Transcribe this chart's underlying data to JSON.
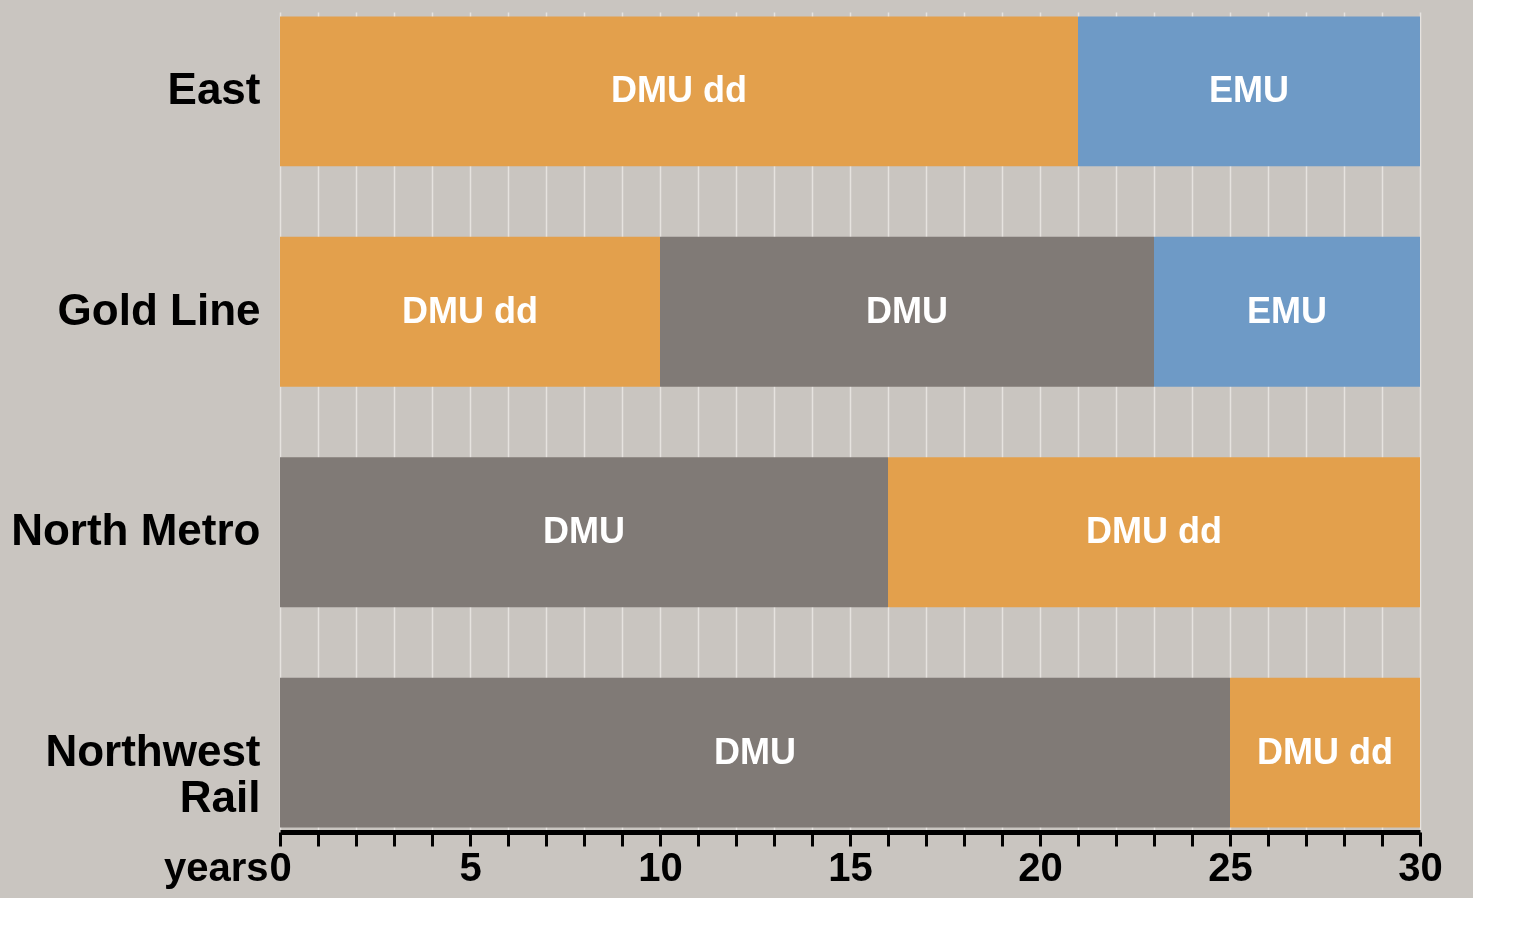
{
  "chart_data": {
    "type": "bar",
    "orientation": "horizontal",
    "xlabel": "years",
    "categories": [
      "East",
      "Gold Line",
      "North Metro",
      "Northwest Rail"
    ],
    "series": [
      {
        "name": "DMU dd",
        "color": "#e3a04c",
        "values": [
          21,
          10,
          14,
          5
        ],
        "base": [
          0,
          0,
          16,
          25
        ]
      },
      {
        "name": "DMU",
        "color": "#807a76",
        "values": [
          null,
          13,
          16,
          25
        ],
        "base": [
          null,
          10,
          0,
          0
        ]
      },
      {
        "name": "EMU",
        "color": "#6e9ac6",
        "values": [
          9,
          7,
          null,
          null
        ],
        "base": [
          21,
          23,
          null,
          null
        ]
      }
    ],
    "xlim": [
      0,
      30
    ],
    "xticks": [
      0,
      {
        "value": 1,
        "label": null
      },
      {
        "value": 2,
        "label": null
      },
      {
        "value": 3,
        "label": null
      },
      {
        "value": 4,
        "label": null
      },
      5,
      {
        "value": 6,
        "label": null
      },
      {
        "value": 7,
        "label": null
      },
      {
        "value": 8,
        "label": null
      },
      {
        "value": 9,
        "label": null
      },
      10,
      {
        "value": 11,
        "label": null
      },
      {
        "value": 12,
        "label": null
      },
      {
        "value": 13,
        "label": null
      },
      {
        "value": 14,
        "label": null
      },
      15,
      {
        "value": 16,
        "label": null
      },
      {
        "value": 17,
        "label": null
      },
      {
        "value": 18,
        "label": null
      },
      {
        "value": 19,
        "label": null
      },
      20,
      {
        "value": 21,
        "label": null
      },
      {
        "value": 22,
        "label": null
      },
      {
        "value": 23,
        "label": null
      },
      {
        "value": 24,
        "label": null
      },
      25,
      {
        "value": 26,
        "label": null
      },
      {
        "value": 27,
        "label": null
      },
      {
        "value": 28,
        "label": null
      },
      {
        "value": 29,
        "label": null
      },
      30
    ],
    "grid": "x",
    "legend": false
  }
}
